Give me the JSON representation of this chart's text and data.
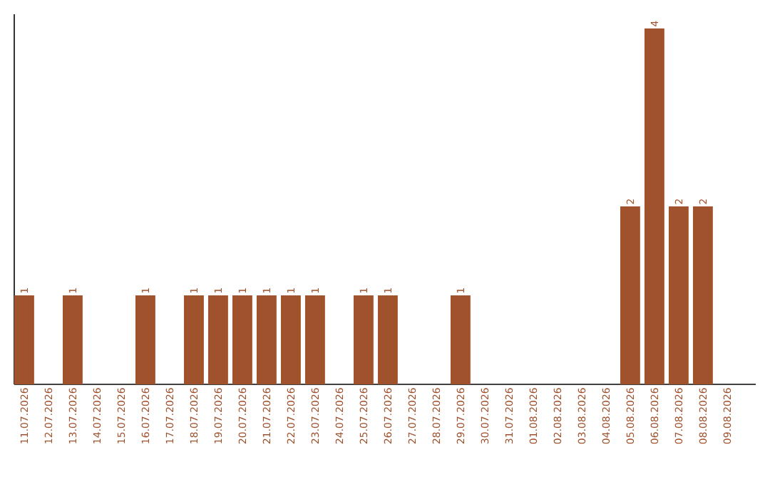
{
  "chart_data": {
    "type": "bar",
    "categories": [
      "11.07.2026",
      "12.07.2026",
      "13.07.2026",
      "14.07.2026",
      "15.07.2026",
      "16.07.2026",
      "17.07.2026",
      "18.07.2026",
      "19.07.2026",
      "20.07.2026",
      "21.07.2026",
      "22.07.2026",
      "23.07.2026",
      "24.07.2026",
      "25.07.2026",
      "26.07.2026",
      "27.07.2026",
      "28.07.2026",
      "29.07.2026",
      "30.07.2026",
      "31.07.2026",
      "01.08.2026",
      "02.08.2026",
      "03.08.2026",
      "04.08.2026",
      "05.08.2026",
      "06.08.2026",
      "07.08.2026",
      "08.08.2026",
      "09.08.2026"
    ],
    "values": [
      1,
      0,
      1,
      0,
      0,
      1,
      0,
      1,
      1,
      1,
      1,
      1,
      1,
      0,
      1,
      1,
      0,
      0,
      1,
      0,
      0,
      0,
      0,
      0,
      0,
      2,
      4,
      2,
      2,
      0
    ],
    "value_labels": [
      "1",
      null,
      "1",
      null,
      null,
      "1",
      null,
      "1",
      "1",
      "1",
      "1",
      "1",
      "1",
      null,
      "1",
      "1",
      null,
      null,
      "1",
      null,
      null,
      null,
      null,
      null,
      null,
      "2",
      "4",
      "2",
      "2",
      null
    ],
    "color": "#a0522d",
    "grid": false
  }
}
